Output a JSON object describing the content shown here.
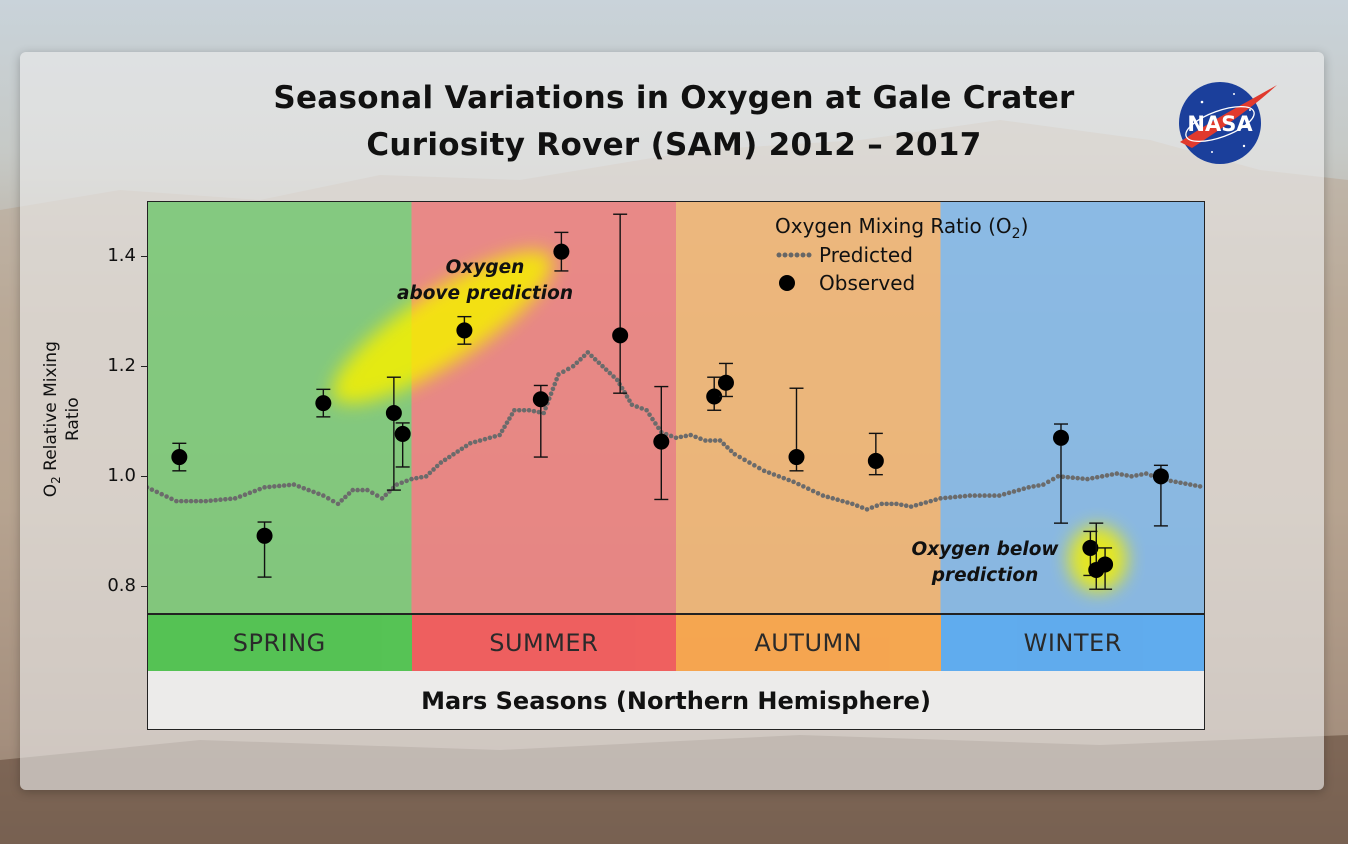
{
  "title_line1": "Seasonal Variations in Oxygen at Gale Crater",
  "title_line2": "Curiosity Rover (SAM) 2012 – 2017",
  "logo_text": "NASA",
  "chart_data": {
    "type": "scatter",
    "title": "Seasonal Variations in Oxygen at Gale Crater Curiosity Rover (SAM) 2012 – 2017",
    "ylabel_main": "O",
    "ylabel_sub": "2",
    "ylabel_rest": " Relative Mixing Ratio",
    "xlabel": "Mars Seasons (Northern Hemisphere)",
    "ylim": [
      0.75,
      1.5
    ],
    "xlim": [
      0,
      360
    ],
    "yticks": [
      "0.8",
      "1.0",
      "1.2",
      "1.4"
    ],
    "seasons": [
      {
        "name": "SPRING",
        "start": 0,
        "end": 90,
        "color": "#4fc24f"
      },
      {
        "name": "SUMMER",
        "start": 90,
        "end": 180,
        "color": "#f05a5a"
      },
      {
        "name": "AUTUMN",
        "start": 180,
        "end": 270,
        "color": "#f7a44a"
      },
      {
        "name": "WINTER",
        "start": 270,
        "end": 360,
        "color": "#5aaaf0"
      }
    ],
    "legend": {
      "title": "Oxygen Mixing Ratio (O",
      "title_sub": "2",
      "title_end": ")",
      "predicted": "Predicted",
      "observed": "Observed"
    },
    "predicted": {
      "name": "Predicted",
      "x": [
        0,
        10,
        20,
        30,
        40,
        50,
        60,
        65,
        70,
        75,
        80,
        85,
        90,
        95,
        100,
        110,
        120,
        125,
        130,
        135,
        140,
        145,
        150,
        155,
        160,
        165,
        170,
        175,
        180,
        185,
        190,
        195,
        200,
        210,
        220,
        230,
        240,
        245,
        250,
        255,
        260,
        270,
        280,
        290,
        300,
        305,
        310,
        320,
        330,
        335,
        340,
        345,
        350,
        355,
        360
      ],
      "y": [
        0.98,
        0.955,
        0.955,
        0.96,
        0.98,
        0.985,
        0.965,
        0.95,
        0.975,
        0.975,
        0.96,
        0.985,
        0.995,
        1.0,
        1.025,
        1.06,
        1.075,
        1.12,
        1.12,
        1.115,
        1.185,
        1.2,
        1.225,
        1.2,
        1.175,
        1.13,
        1.12,
        1.08,
        1.07,
        1.075,
        1.065,
        1.065,
        1.04,
        1.01,
        0.99,
        0.965,
        0.95,
        0.94,
        0.95,
        0.95,
        0.945,
        0.96,
        0.965,
        0.965,
        0.98,
        0.985,
        1.0,
        0.995,
        1.005,
        1.0,
        1.005,
        0.995,
        0.99,
        0.985,
        0.98
      ]
    },
    "observed": {
      "name": "Observed",
      "x": [
        11,
        40,
        60,
        84,
        87,
        108,
        134,
        141,
        161,
        175,
        193,
        197,
        221,
        248,
        311,
        321,
        323,
        326,
        345
      ],
      "y": [
        1.035,
        0.892,
        1.133,
        1.115,
        1.077,
        1.265,
        1.14,
        1.408,
        1.256,
        1.063,
        1.145,
        1.17,
        1.035,
        1.028,
        1.07,
        0.87,
        0.83,
        0.84,
        1.0
      ],
      "err_low": [
        0.025,
        0.075,
        0.025,
        0.14,
        0.06,
        0.025,
        0.105,
        0.035,
        0.105,
        0.105,
        0.025,
        0.025,
        0.025,
        0.025,
        0.155,
        0.05,
        0.035,
        0.045,
        0.09
      ],
      "err_high": [
        0.025,
        0.025,
        0.025,
        0.065,
        0.02,
        0.025,
        0.025,
        0.035,
        0.22,
        0.1,
        0.035,
        0.035,
        0.125,
        0.05,
        0.025,
        0.03,
        0.085,
        0.03,
        0.02
      ]
    },
    "highlights": [
      {
        "label_line1": "Oxygen",
        "label_line2": "above prediction"
      },
      {
        "label_line1": "Oxygen below",
        "label_line2": "prediction"
      }
    ],
    "grid": false,
    "legend_position": "top-right"
  }
}
